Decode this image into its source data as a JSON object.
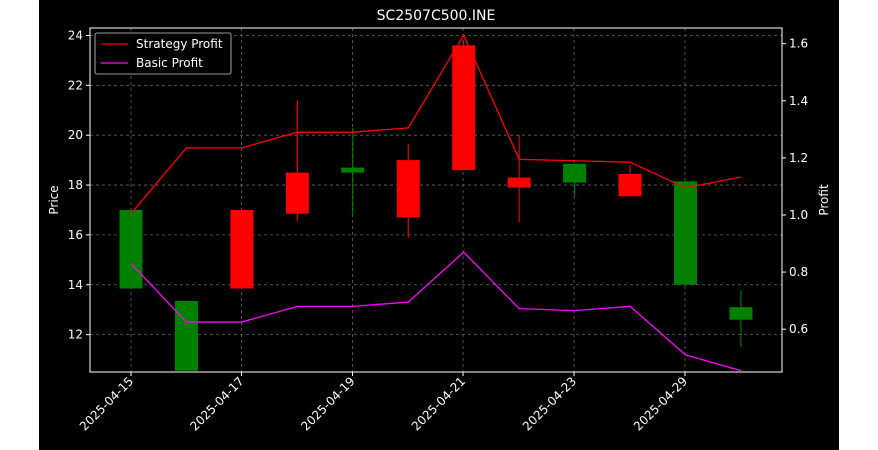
{
  "chart_data": {
    "type": "candlestick",
    "title": "SC2507C500.INE",
    "ylabel_left": "Price",
    "ylabel_right": "Profit",
    "x_tick_labels": [
      "2025-04-15",
      "2025-04-17",
      "2025-04-19",
      "2025-04-21",
      "2025-04-23",
      "2025-04-25",
      "2025-04-29"
    ],
    "y_left_ticks": [
      "12",
      "14",
      "16",
      "18",
      "20",
      "22",
      "24"
    ],
    "y_right_ticks": [
      "0.6",
      "0.8",
      "1.0",
      "1.2",
      "1.4",
      "1.6"
    ],
    "ylim_left": [
      10.5,
      24.3
    ],
    "ylim_right": [
      0.45,
      1.655
    ],
    "grid": true,
    "legend_position": "top-left",
    "colors": {
      "background": "#000000",
      "axes_edge": "#ffffff",
      "grid": "#666666",
      "up": "#008000",
      "down": "#ff0000",
      "strategy_line": "#ff0000",
      "basic_line": "#ff00ff"
    },
    "candles": [
      {
        "x": 0,
        "open": 13.85,
        "close": 17.0,
        "high": 17.0,
        "low": 13.85
      },
      {
        "x": 1,
        "open": 10.55,
        "close": 13.35,
        "high": 13.35,
        "low": 10.55
      },
      {
        "x": 2,
        "open": 17.0,
        "close": 13.85,
        "high": 17.0,
        "low": 13.85
      },
      {
        "x": 3,
        "open": 18.5,
        "close": 16.85,
        "high": 21.4,
        "low": 16.55
      },
      {
        "x": 4,
        "open": 18.5,
        "close": 18.7,
        "high": 20.3,
        "low": 16.8
      },
      {
        "x": 5,
        "open": 19.0,
        "close": 16.7,
        "high": 19.65,
        "low": 15.9
      },
      {
        "x": 6,
        "open": 23.6,
        "close": 18.6,
        "high": 23.8,
        "low": 18.6
      },
      {
        "x": 7,
        "open": 18.3,
        "close": 17.9,
        "high": 20.0,
        "low": 16.5
      },
      {
        "x": 8,
        "open": 18.1,
        "close": 18.85,
        "high": 18.85,
        "low": 17.55
      },
      {
        "x": 9,
        "open": 18.45,
        "close": 17.55,
        "high": 18.8,
        "low": 17.55
      },
      {
        "x": 10,
        "open": 14.0,
        "close": 18.15,
        "high": 18.15,
        "low": 13.95
      },
      {
        "x": 11,
        "open": 12.6,
        "close": 13.1,
        "high": 13.75,
        "low": 11.5
      }
    ],
    "series": [
      {
        "name": "Strategy Profit",
        "color": "#ff0000",
        "values": [
          1.005,
          1.235,
          1.235,
          1.29,
          1.29,
          1.305,
          1.63,
          1.195,
          1.19,
          1.185,
          1.095,
          1.133
        ]
      },
      {
        "name": "Basic Profit",
        "color": "#ff00ff",
        "values": [
          0.83,
          0.625,
          0.625,
          0.68,
          0.68,
          0.695,
          0.87,
          0.672,
          0.665,
          0.68,
          0.51,
          0.455
        ]
      }
    ]
  }
}
